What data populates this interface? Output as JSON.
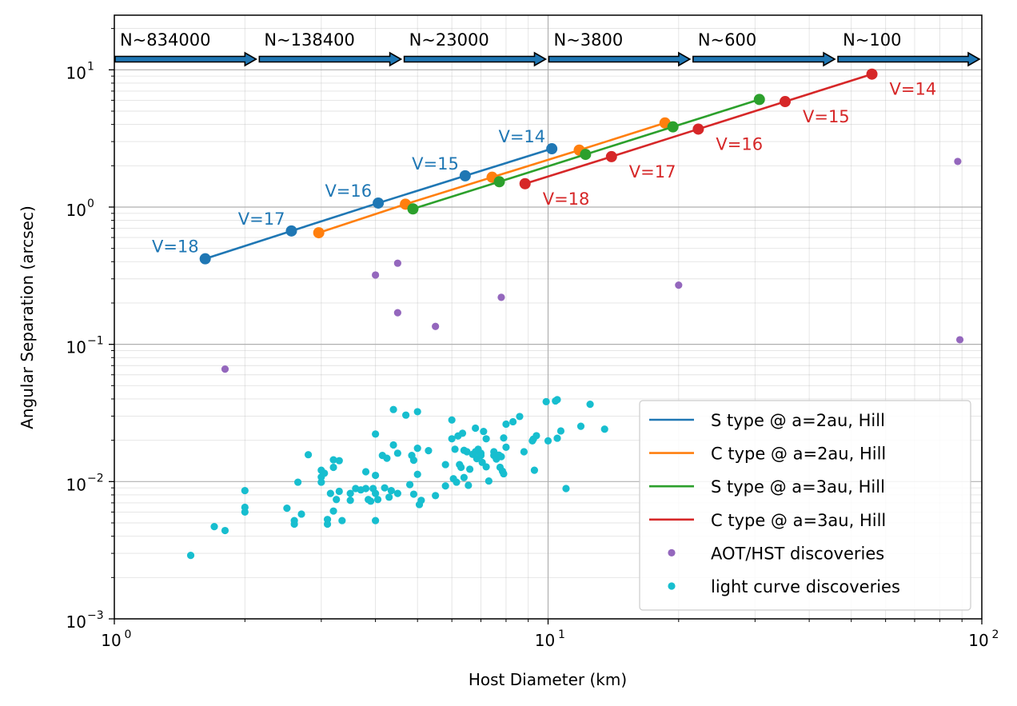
{
  "chart_data": {
    "type": "scatter",
    "xlabel": "Host Diameter (km)",
    "ylabel": "Angular Separation (arcsec)",
    "xscale": "log",
    "yscale": "log",
    "xlim": [
      1,
      100
    ],
    "ylim": [
      0.001,
      25
    ],
    "x_ticks": [
      {
        "value": 1,
        "base": "10",
        "exp": "0"
      },
      {
        "value": 10,
        "base": "10",
        "exp": "1"
      },
      {
        "value": 100,
        "base": "10",
        "exp": "2"
      }
    ],
    "y_ticks": [
      {
        "value": 0.001,
        "base": "10",
        "exp": "−3"
      },
      {
        "value": 0.01,
        "base": "10",
        "exp": "−2"
      },
      {
        "value": 0.1,
        "base": "10",
        "exp": "−1"
      },
      {
        "value": 1,
        "base": "10",
        "exp": "0"
      },
      {
        "value": 10,
        "base": "10",
        "exp": "1"
      }
    ],
    "grid": true,
    "legend_position": "lower-right",
    "population_bins": [
      {
        "label": "N~834000",
        "x_start": 1.0,
        "x_end": 2.15
      },
      {
        "label": "N~138400",
        "x_start": 2.15,
        "x_end": 4.64
      },
      {
        "label": "N~23000",
        "x_start": 4.64,
        "x_end": 10.0
      },
      {
        "label": "N~3800",
        "x_start": 10.0,
        "x_end": 21.5
      },
      {
        "label": "N~600",
        "x_start": 21.5,
        "x_end": 46.4
      },
      {
        "label": "N~100",
        "x_start": 46.4,
        "x_end": 100.0
      }
    ],
    "series": [
      {
        "name": "S type @ a=2au, Hill",
        "color": "#1f77b4",
        "kind": "line",
        "label_side": "left",
        "points": [
          {
            "x": 1.62,
            "y": 0.42,
            "label": "V=18"
          },
          {
            "x": 2.56,
            "y": 0.67,
            "label": "V=17"
          },
          {
            "x": 4.06,
            "y": 1.07,
            "label": "V=16"
          },
          {
            "x": 6.44,
            "y": 1.69,
            "label": "V=15"
          },
          {
            "x": 10.2,
            "y": 2.66,
            "label": "V=14"
          }
        ]
      },
      {
        "name": "C type @ a=2au, Hill",
        "color": "#ff7f0e",
        "kind": "line",
        "label_side": "none",
        "points": [
          {
            "x": 2.96,
            "y": 0.65
          },
          {
            "x": 4.69,
            "y": 1.05
          },
          {
            "x": 7.43,
            "y": 1.65
          },
          {
            "x": 11.8,
            "y": 2.6
          },
          {
            "x": 18.6,
            "y": 4.1
          }
        ]
      },
      {
        "name": "S type @ a=3au, Hill",
        "color": "#2ca02c",
        "kind": "line",
        "label_side": "none",
        "points": [
          {
            "x": 4.88,
            "y": 0.97
          },
          {
            "x": 7.72,
            "y": 1.53
          },
          {
            "x": 12.2,
            "y": 2.42
          },
          {
            "x": 19.4,
            "y": 3.84
          },
          {
            "x": 30.7,
            "y": 6.08
          }
        ]
      },
      {
        "name": "C type @ a=3au, Hill",
        "color": "#d62728",
        "kind": "line",
        "label_side": "right",
        "points": [
          {
            "x": 8.85,
            "y": 1.48,
            "label": "V=18"
          },
          {
            "x": 14.0,
            "y": 2.33,
            "label": "V=17"
          },
          {
            "x": 22.2,
            "y": 3.7,
            "label": "V=16"
          },
          {
            "x": 35.2,
            "y": 5.87,
            "label": "V=15"
          },
          {
            "x": 55.8,
            "y": 9.3,
            "label": "V=14"
          }
        ]
      },
      {
        "name": "AOT/HST discoveries",
        "color": "#9467bd",
        "kind": "points",
        "points": [
          {
            "x": 1.8,
            "y": 0.066
          },
          {
            "x": 4.0,
            "y": 0.32
          },
          {
            "x": 4.5,
            "y": 0.39
          },
          {
            "x": 4.5,
            "y": 0.17
          },
          {
            "x": 5.5,
            "y": 0.135
          },
          {
            "x": 7.8,
            "y": 0.22
          },
          {
            "x": 20.0,
            "y": 0.27
          },
          {
            "x": 88.0,
            "y": 2.15
          },
          {
            "x": 89.0,
            "y": 0.108
          }
        ]
      },
      {
        "name": "light curve discoveries",
        "color": "#17becf",
        "kind": "points",
        "points": [
          {
            "x": 1.5,
            "y": 0.0029
          },
          {
            "x": 1.7,
            "y": 0.0047
          },
          {
            "x": 1.8,
            "y": 0.0044
          },
          {
            "x": 2.0,
            "y": 0.0086
          },
          {
            "x": 2.0,
            "y": 0.0065
          },
          {
            "x": 2.0,
            "y": 0.006
          },
          {
            "x": 2.5,
            "y": 0.0064
          },
          {
            "x": 2.6,
            "y": 0.0052
          },
          {
            "x": 2.6,
            "y": 0.0049
          },
          {
            "x": 2.65,
            "y": 0.0099
          },
          {
            "x": 2.7,
            "y": 0.0058
          },
          {
            "x": 2.8,
            "y": 0.0157
          },
          {
            "x": 3.0,
            "y": 0.0121
          },
          {
            "x": 3.0,
            "y": 0.0108
          },
          {
            "x": 3.0,
            "y": 0.0099
          },
          {
            "x": 3.05,
            "y": 0.0115
          },
          {
            "x": 3.1,
            "y": 0.0053
          },
          {
            "x": 3.1,
            "y": 0.0049
          },
          {
            "x": 3.15,
            "y": 0.0082
          },
          {
            "x": 3.2,
            "y": 0.0144
          },
          {
            "x": 3.2,
            "y": 0.0127
          },
          {
            "x": 3.2,
            "y": 0.0061
          },
          {
            "x": 3.25,
            "y": 0.0074
          },
          {
            "x": 3.3,
            "y": 0.0142
          },
          {
            "x": 3.3,
            "y": 0.0085
          },
          {
            "x": 3.35,
            "y": 0.0052
          },
          {
            "x": 3.5,
            "y": 0.0082
          },
          {
            "x": 3.5,
            "y": 0.0073
          },
          {
            "x": 3.6,
            "y": 0.0089
          },
          {
            "x": 3.7,
            "y": 0.0087
          },
          {
            "x": 3.8,
            "y": 0.0118
          },
          {
            "x": 3.8,
            "y": 0.0089
          },
          {
            "x": 3.85,
            "y": 0.0074
          },
          {
            "x": 3.9,
            "y": 0.0072
          },
          {
            "x": 3.95,
            "y": 0.0089
          },
          {
            "x": 4.0,
            "y": 0.0222
          },
          {
            "x": 4.0,
            "y": 0.0111
          },
          {
            "x": 4.0,
            "y": 0.0082
          },
          {
            "x": 4.0,
            "y": 0.0052
          },
          {
            "x": 4.05,
            "y": 0.0074
          },
          {
            "x": 4.15,
            "y": 0.0155
          },
          {
            "x": 4.2,
            "y": 0.009
          },
          {
            "x": 4.25,
            "y": 0.0148
          },
          {
            "x": 4.3,
            "y": 0.0077
          },
          {
            "x": 4.35,
            "y": 0.0086
          },
          {
            "x": 4.4,
            "y": 0.0335
          },
          {
            "x": 4.4,
            "y": 0.0185
          },
          {
            "x": 4.5,
            "y": 0.0161
          },
          {
            "x": 4.5,
            "y": 0.0082
          },
          {
            "x": 4.7,
            "y": 0.0305
          },
          {
            "x": 4.8,
            "y": 0.0095
          },
          {
            "x": 4.85,
            "y": 0.0155
          },
          {
            "x": 4.9,
            "y": 0.0143
          },
          {
            "x": 4.9,
            "y": 0.0081
          },
          {
            "x": 5.0,
            "y": 0.0323
          },
          {
            "x": 5.0,
            "y": 0.0175
          },
          {
            "x": 5.0,
            "y": 0.0113
          },
          {
            "x": 5.05,
            "y": 0.0068
          },
          {
            "x": 5.1,
            "y": 0.0073
          },
          {
            "x": 5.3,
            "y": 0.0168
          },
          {
            "x": 5.5,
            "y": 0.0079
          },
          {
            "x": 5.8,
            "y": 0.0133
          },
          {
            "x": 5.8,
            "y": 0.0093
          },
          {
            "x": 6.0,
            "y": 0.0281
          },
          {
            "x": 6.0,
            "y": 0.0205
          },
          {
            "x": 6.05,
            "y": 0.0105
          },
          {
            "x": 6.1,
            "y": 0.0172
          },
          {
            "x": 6.15,
            "y": 0.0099
          },
          {
            "x": 6.2,
            "y": 0.0215
          },
          {
            "x": 6.25,
            "y": 0.0133
          },
          {
            "x": 6.3,
            "y": 0.0127
          },
          {
            "x": 6.35,
            "y": 0.0225
          },
          {
            "x": 6.4,
            "y": 0.0169
          },
          {
            "x": 6.4,
            "y": 0.0107
          },
          {
            "x": 6.5,
            "y": 0.0165
          },
          {
            "x": 6.55,
            "y": 0.0094
          },
          {
            "x": 6.6,
            "y": 0.0123
          },
          {
            "x": 6.7,
            "y": 0.0158
          },
          {
            "x": 6.8,
            "y": 0.0245
          },
          {
            "x": 6.8,
            "y": 0.0165
          },
          {
            "x": 6.85,
            "y": 0.0147
          },
          {
            "x": 6.9,
            "y": 0.0172
          },
          {
            "x": 7.0,
            "y": 0.0161
          },
          {
            "x": 7.0,
            "y": 0.0155
          },
          {
            "x": 7.05,
            "y": 0.0138
          },
          {
            "x": 7.1,
            "y": 0.0232
          },
          {
            "x": 7.2,
            "y": 0.0205
          },
          {
            "x": 7.2,
            "y": 0.0128
          },
          {
            "x": 7.3,
            "y": 0.0101
          },
          {
            "x": 7.5,
            "y": 0.0165
          },
          {
            "x": 7.5,
            "y": 0.0155
          },
          {
            "x": 7.6,
            "y": 0.0146
          },
          {
            "x": 7.7,
            "y": 0.0156
          },
          {
            "x": 7.75,
            "y": 0.0127
          },
          {
            "x": 7.8,
            "y": 0.0152
          },
          {
            "x": 7.85,
            "y": 0.0119
          },
          {
            "x": 7.9,
            "y": 0.0114
          },
          {
            "x": 7.9,
            "y": 0.0208
          },
          {
            "x": 8.0,
            "y": 0.0262
          },
          {
            "x": 8.0,
            "y": 0.0178
          },
          {
            "x": 8.3,
            "y": 0.0273
          },
          {
            "x": 8.6,
            "y": 0.0298
          },
          {
            "x": 8.8,
            "y": 0.0165
          },
          {
            "x": 9.2,
            "y": 0.0198
          },
          {
            "x": 9.25,
            "y": 0.0204
          },
          {
            "x": 9.3,
            "y": 0.0121
          },
          {
            "x": 9.4,
            "y": 0.0216
          },
          {
            "x": 9.9,
            "y": 0.0382
          },
          {
            "x": 10.0,
            "y": 0.0198
          },
          {
            "x": 10.4,
            "y": 0.0387
          },
          {
            "x": 10.5,
            "y": 0.0395
          },
          {
            "x": 10.5,
            "y": 0.0207
          },
          {
            "x": 10.7,
            "y": 0.0234
          },
          {
            "x": 11.0,
            "y": 0.0089
          },
          {
            "x": 11.9,
            "y": 0.0253
          },
          {
            "x": 12.5,
            "y": 0.0366
          },
          {
            "x": 13.5,
            "y": 0.0241
          }
        ]
      }
    ]
  }
}
